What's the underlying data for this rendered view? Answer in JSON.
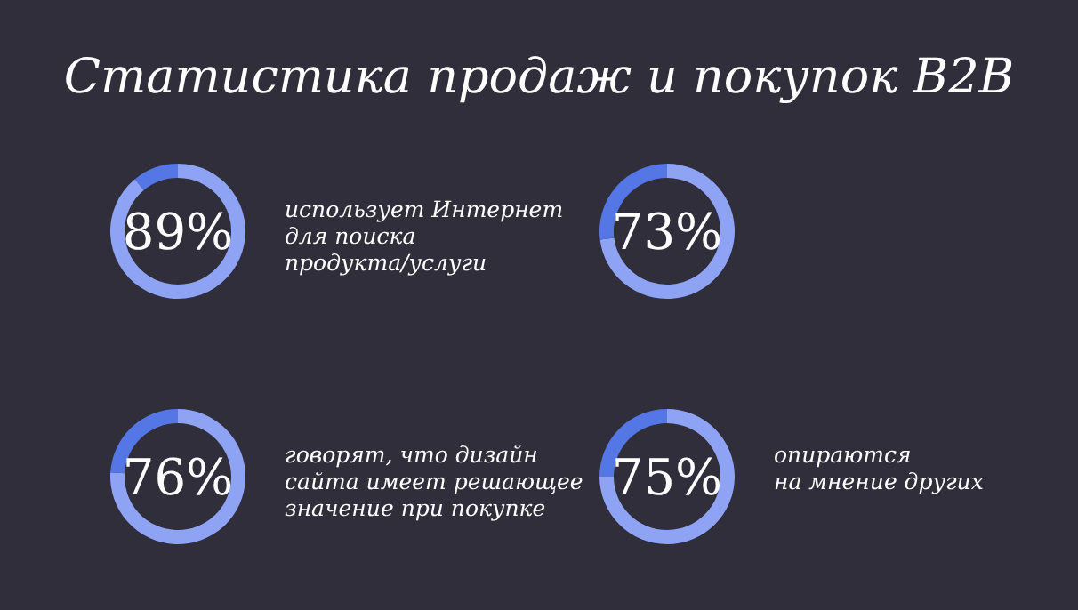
{
  "chart_data": [
    {
      "type": "other",
      "title": "Статистика продаж и покупок B2B"
    },
    {
      "type": "donut",
      "categories": [
        null,
        null
      ],
      "values": [
        89,
        11
      ],
      "colors": [
        "#8fa3f5",
        "#5577e6"
      ],
      "value_labels": [
        "89%",
        null
      ],
      "annotations": [
        "использует Интернет",
        "для поиска",
        "продукта/услуги"
      ]
    },
    {
      "type": "donut",
      "categories": [
        null,
        null
      ],
      "values": [
        73,
        27
      ],
      "colors": [
        "#8fa3f5",
        "#5577e6"
      ],
      "value_labels": [
        "73%",
        null
      ]
    },
    {
      "type": "donut",
      "categories": [
        null,
        null
      ],
      "values": [
        76,
        24
      ],
      "colors": [
        "#8fa3f5",
        "#5577e6"
      ],
      "value_labels": [
        "76%",
        null
      ],
      "annotations": [
        "говорят, что дизайн",
        "сайта имеет решающее",
        "значение при покупке"
      ]
    },
    {
      "type": "donut",
      "categories": [
        null,
        null
      ],
      "values": [
        75,
        25
      ],
      "colors": [
        "#8fa3f5",
        "#5577e6"
      ],
      "value_labels": [
        "75%",
        null
      ],
      "annotations": [
        "опираются",
        "на мнение других"
      ]
    }
  ]
}
